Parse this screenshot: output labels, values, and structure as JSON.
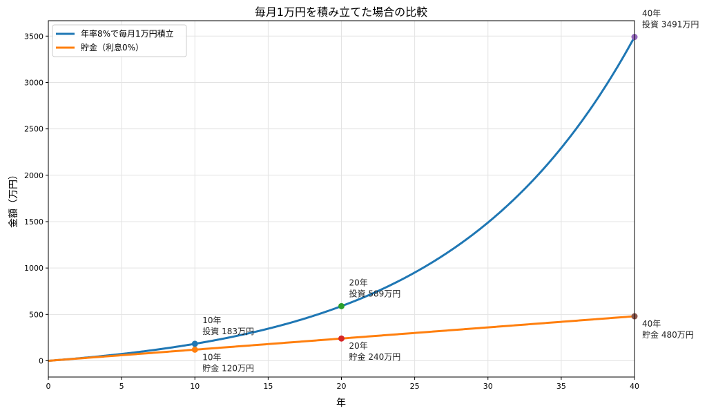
{
  "chart_data": {
    "type": "line",
    "title": "毎月1万円を積み立てた場合の比較",
    "xlabel": "年",
    "ylabel": "金額（万円）",
    "xlim": [
      0,
      40
    ],
    "ylim": [
      -175,
      3666
    ],
    "xticks": [
      0,
      5,
      10,
      15,
      20,
      25,
      30,
      35,
      40
    ],
    "yticks": [
      0,
      500,
      1000,
      1500,
      2000,
      2500,
      3000,
      3500
    ],
    "grid": true,
    "legend_position": "top-left",
    "series": [
      {
        "name": "年率8%で毎月1万円積立",
        "color": "#1f77b4",
        "monthly": 1,
        "annual_rate": 0.08
      },
      {
        "name": "貯金（利息0%）",
        "color": "#ff7f0e",
        "monthly": 1,
        "annual_rate": 0
      }
    ],
    "markers": [
      {
        "x": 10,
        "y": 183,
        "color": "#1f77b4",
        "label_lines": [
          "10年",
          "投資 183万円"
        ],
        "pos": "above"
      },
      {
        "x": 10,
        "y": 120,
        "color": "#ff7f0e",
        "label_lines": [
          "10年",
          "貯金 120万円"
        ],
        "pos": "below"
      },
      {
        "x": 20,
        "y": 589,
        "color": "#2ca02c",
        "label_lines": [
          "20年",
          "投資 589万円"
        ],
        "pos": "above"
      },
      {
        "x": 20,
        "y": 240,
        "color": "#d62728",
        "label_lines": [
          "20年",
          "貯金 240万円"
        ],
        "pos": "below"
      },
      {
        "x": 40,
        "y": 3491,
        "color": "#9467bd",
        "label_lines": [
          "40年",
          "投資 3491万円"
        ],
        "pos": "above"
      },
      {
        "x": 40,
        "y": 480,
        "color": "#8c564b",
        "label_lines": [
          "40年",
          "貯金 480万円"
        ],
        "pos": "below"
      }
    ]
  }
}
